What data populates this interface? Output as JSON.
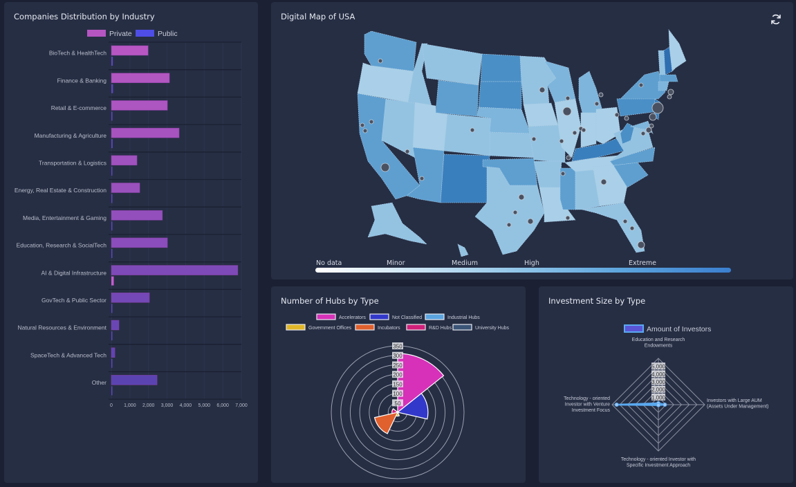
{
  "bar_chart": {
    "title": "Companies Distribution by Industry",
    "legend": [
      {
        "label": "Private",
        "color": "#b555c2"
      },
      {
        "label": "Public",
        "color": "#4e4ee6"
      }
    ],
    "x_ticks": [
      "0",
      "1,000",
      "2,000",
      "3,000",
      "4,000",
      "5,000",
      "6,000",
      "7,000"
    ],
    "chart_data": {
      "type": "bar",
      "orientation": "horizontal",
      "categories": [
        "BioTech & HealthTech",
        "Finance & Banking",
        "Retail & E-commerce",
        "Manufacturing & Agriculture",
        "Transportation & Logistics",
        "Energy, Real Estate & Construction",
        "Media, Entertainment & Gaming",
        "Education, Research & SocialTech",
        "AI & Digital Infrastructure",
        "GovTech & Public Sector",
        "Natural Resources & Environment",
        "SpaceTech & Advanced Tech",
        "Other"
      ],
      "series": [
        {
          "name": "Private",
          "values": [
            1980,
            3130,
            3020,
            3650,
            1380,
            1530,
            2750,
            3020,
            6810,
            2050,
            410,
            190,
            2460
          ]
        },
        {
          "name": "Public",
          "values": [
            80,
            90,
            60,
            70,
            40,
            30,
            40,
            30,
            130,
            40,
            20,
            20,
            40
          ]
        }
      ],
      "xlim": [
        0,
        7000
      ],
      "bar_colors": [
        "#b857c3",
        "#b256c1",
        "#ad55c0",
        "#a753bf",
        "#a052be",
        "#9a51bd",
        "#934fbc",
        "#8b4dbb",
        "#7e4ab8",
        "#7448b6",
        "#6a46b5",
        "#6244b3",
        "#5b43b2"
      ]
    }
  },
  "map": {
    "title": "Digital Map of USA",
    "refresh_icon": "refresh-icon",
    "scale_labels": [
      "No data",
      "Minor",
      "Medium",
      "High",
      "Extreme"
    ]
  },
  "polar_chart": {
    "title": "Number of Hubs by Type",
    "chart_data": {
      "type": "polarArea",
      "categories": [
        "Accelerators",
        "Not Classified",
        "Industrial Hubs",
        "Government Offices",
        "Incubators",
        "R&D Hubs",
        "University Hubs"
      ],
      "values": [
        310,
        160,
        5,
        20,
        125,
        30,
        5
      ],
      "colors": [
        "#d631b8",
        "#3238c9",
        "#5aa4e0",
        "#e0b628",
        "#e0602e",
        "#d1207a",
        "#3b5578"
      ],
      "ticks": [
        "50",
        "100",
        "150",
        "200",
        "250",
        "300",
        "350"
      ],
      "rmax": 350
    }
  },
  "radar_chart": {
    "title": "Investment Size by Type",
    "legend_label": "Amount of Investors",
    "chart_data": {
      "type": "radar",
      "axes": [
        [
          "Education and Research",
          "Endowments"
        ],
        [
          "Investors with Large AUM",
          "(Assets Under Management)"
        ],
        [
          "Technology - oriented Investor with",
          "Specific Investment Approach"
        ],
        [
          "Technology - oriented",
          "Investor with Venture",
          "Investment Focus"
        ]
      ],
      "series": [
        {
          "name": "Amount of Investors",
          "values": [
            150,
            700,
            50,
            4500
          ],
          "color": "#5aa9f0"
        }
      ],
      "ticks": [
        "1,000",
        "2,000",
        "3,000",
        "4,000",
        "5,000"
      ],
      "rmax": 5000
    }
  }
}
